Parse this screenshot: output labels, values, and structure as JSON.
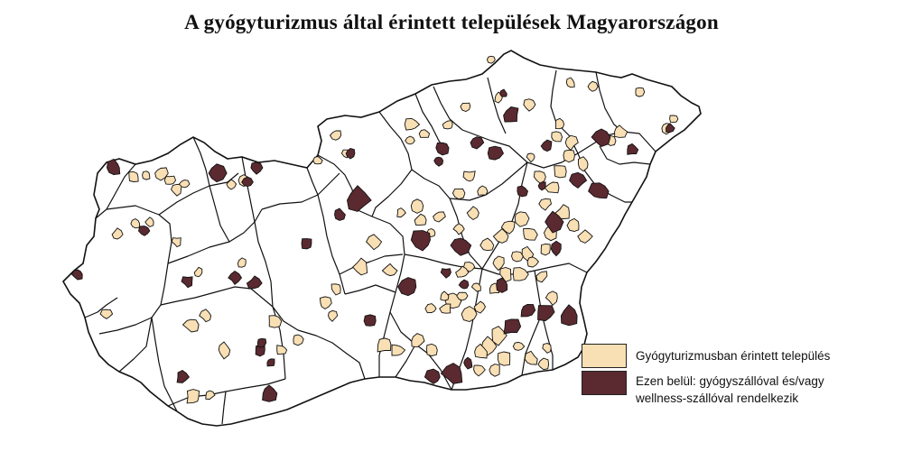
{
  "title": "A gyógyturizmus által érintett települések Magyarországon",
  "legend": {
    "items": [
      {
        "label": "Gyógyturizmusban érintett település",
        "color": "#f9dfb4"
      },
      {
        "label": "Ezen belül: gyógyszállóval és/vagy wellness-szállóval rendelkezik",
        "color": "#5a2a30"
      }
    ]
  },
  "map": {
    "country": "Magyarország",
    "colors": {
      "background": "#ffffff",
      "boundary": "#111111",
      "spa": "#f9dfb4",
      "hotel": "#5a2a30"
    }
  }
}
